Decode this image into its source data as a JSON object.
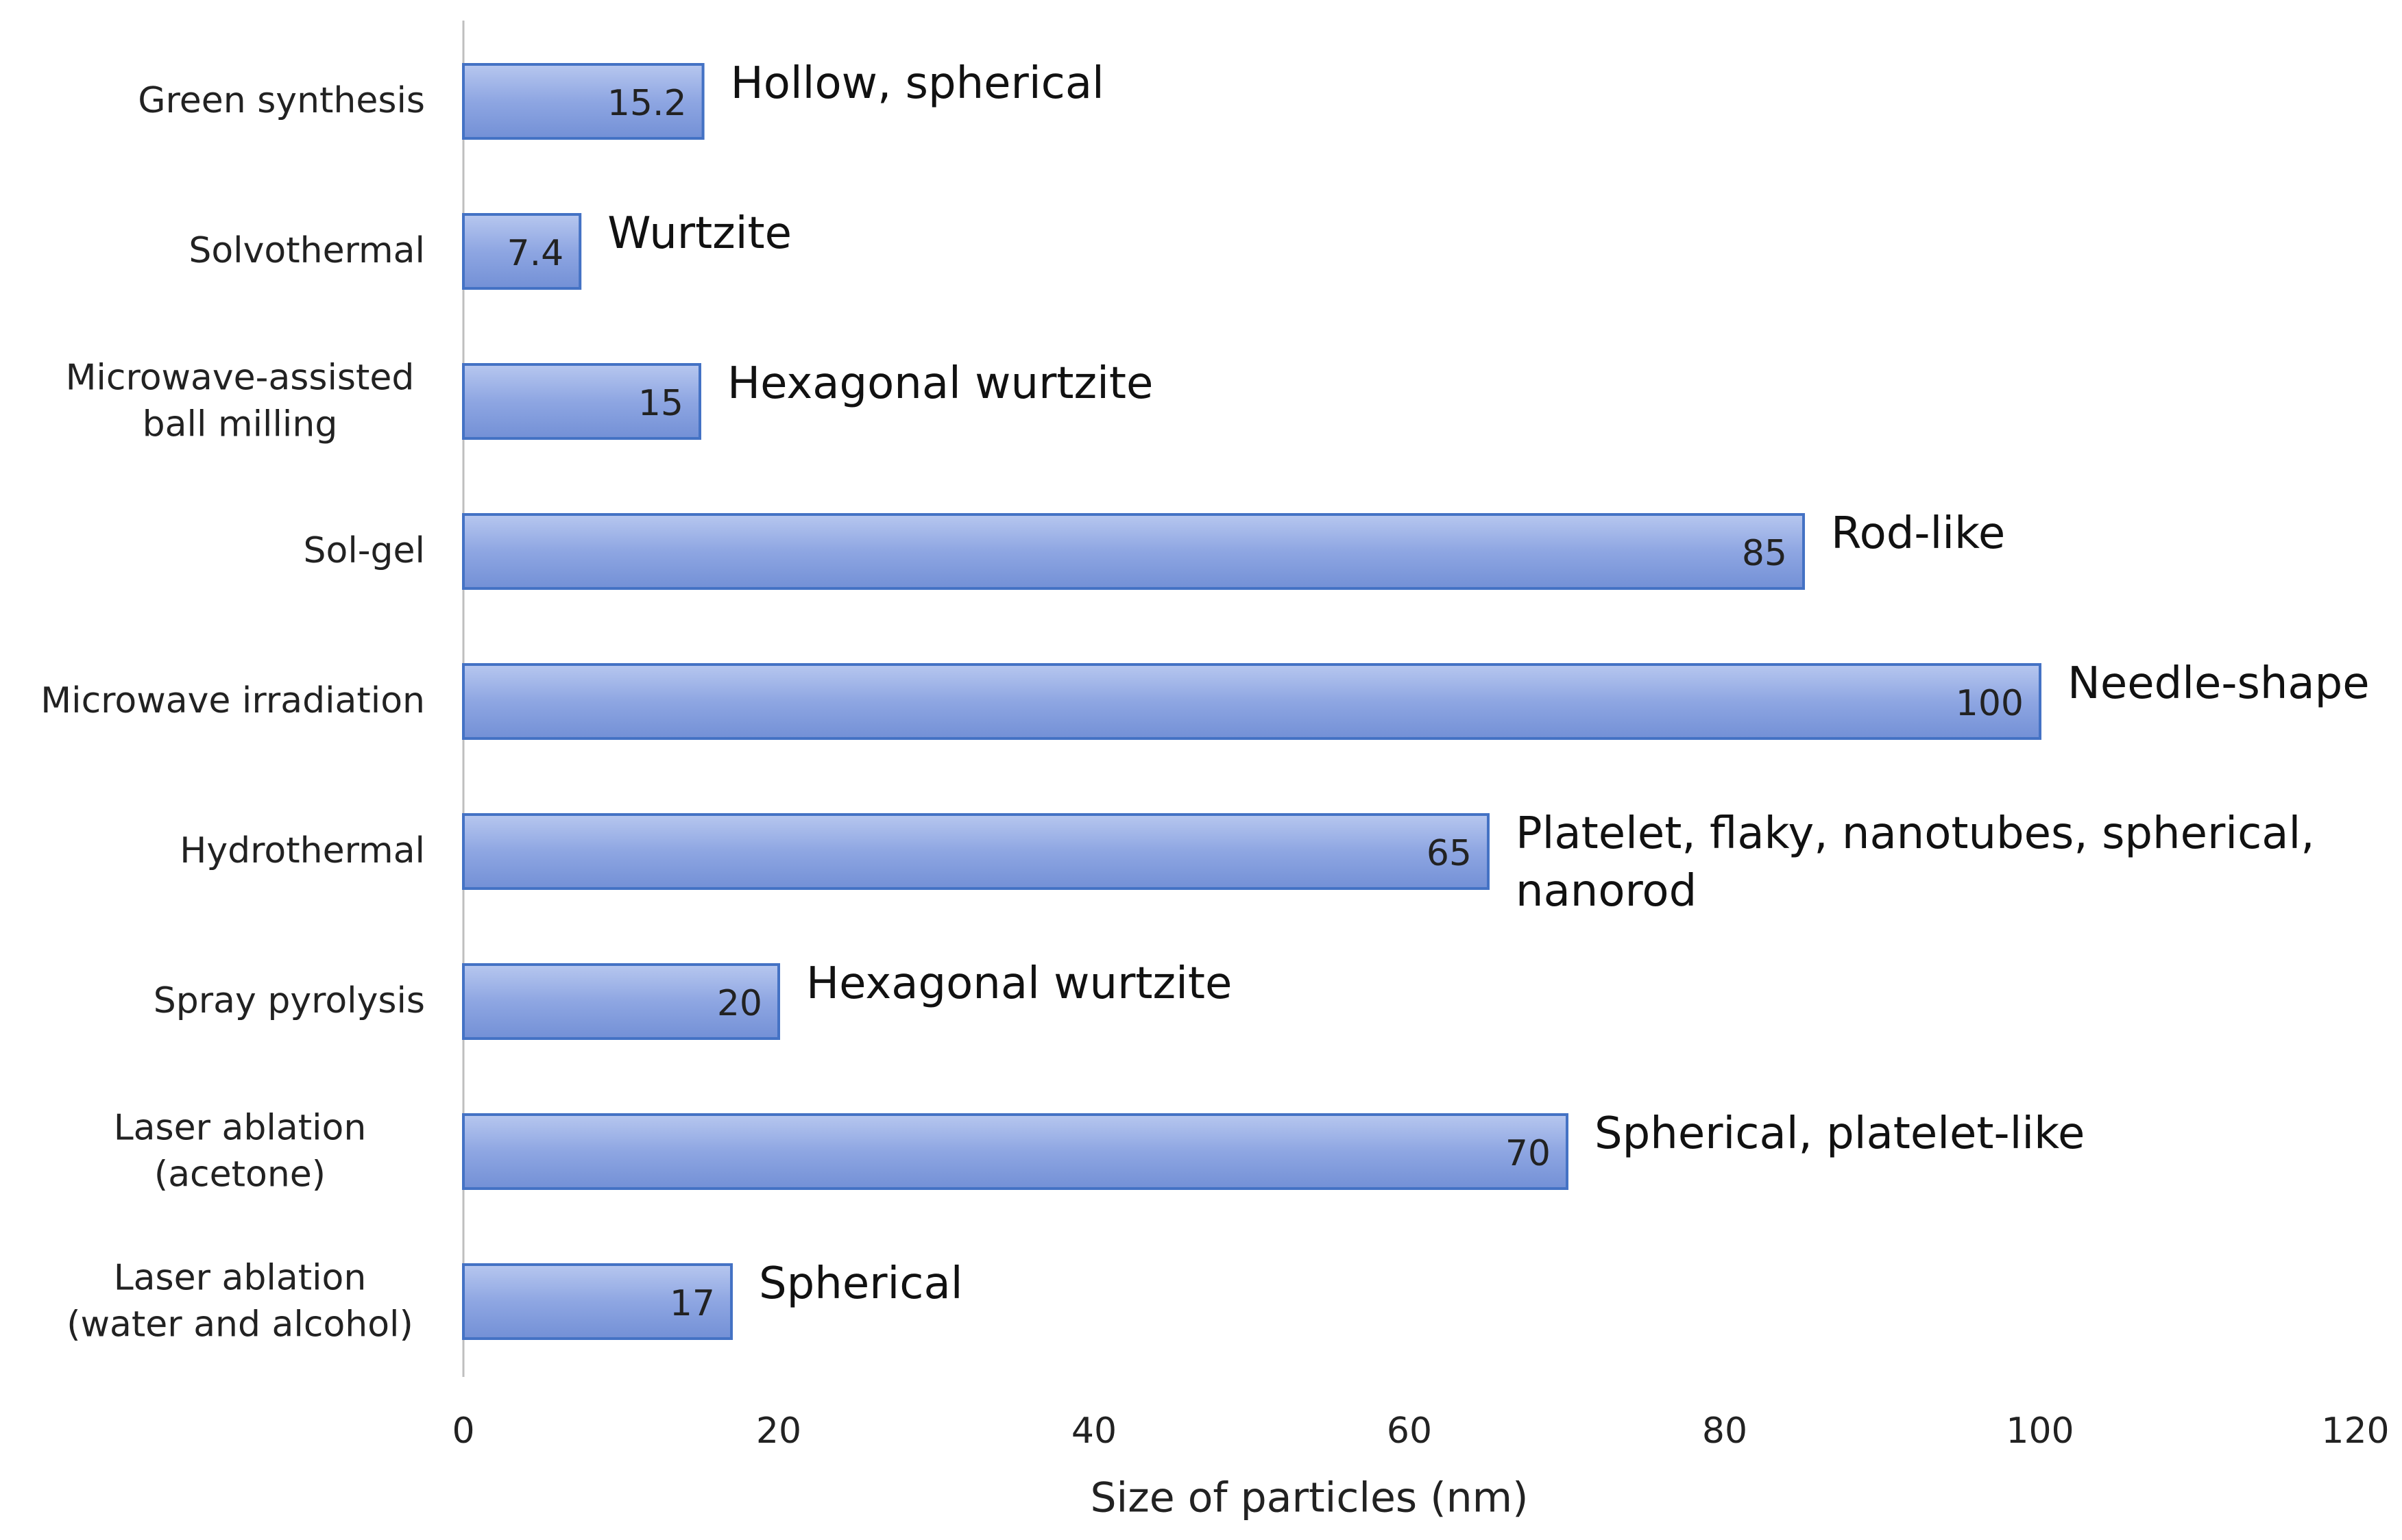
{
  "chart_data": {
    "type": "bar",
    "orientation": "horizontal",
    "categories": [
      "Green synthesis",
      "Solvothermal",
      "Microwave-assisted ball milling",
      "Sol-gel",
      "Microwave irradiation",
      "Hydrothermal",
      "Spray pyrolysis",
      "Laser ablation (acetone)",
      "Laser ablation (water and alcohol)"
    ],
    "values": [
      15.2,
      7.4,
      15,
      85,
      100,
      65,
      20,
      70,
      17
    ],
    "annotations": [
      "Hollow, spherical",
      "Wurtzite",
      "Hexagonal wurtzite",
      "Rod-like",
      "Needle-shape",
      "Platelet, flaky, nanotubes, spherical, nanorod",
      "Hexagonal wurtzite",
      "Spherical, platelet-like",
      "Spherical"
    ],
    "color": "#8ea6e2",
    "xlabel": "Size of particles (nm)",
    "xlim": [
      0,
      120
    ],
    "xticks": [
      0,
      20,
      40,
      60,
      80,
      100,
      120
    ],
    "grid": false
  }
}
